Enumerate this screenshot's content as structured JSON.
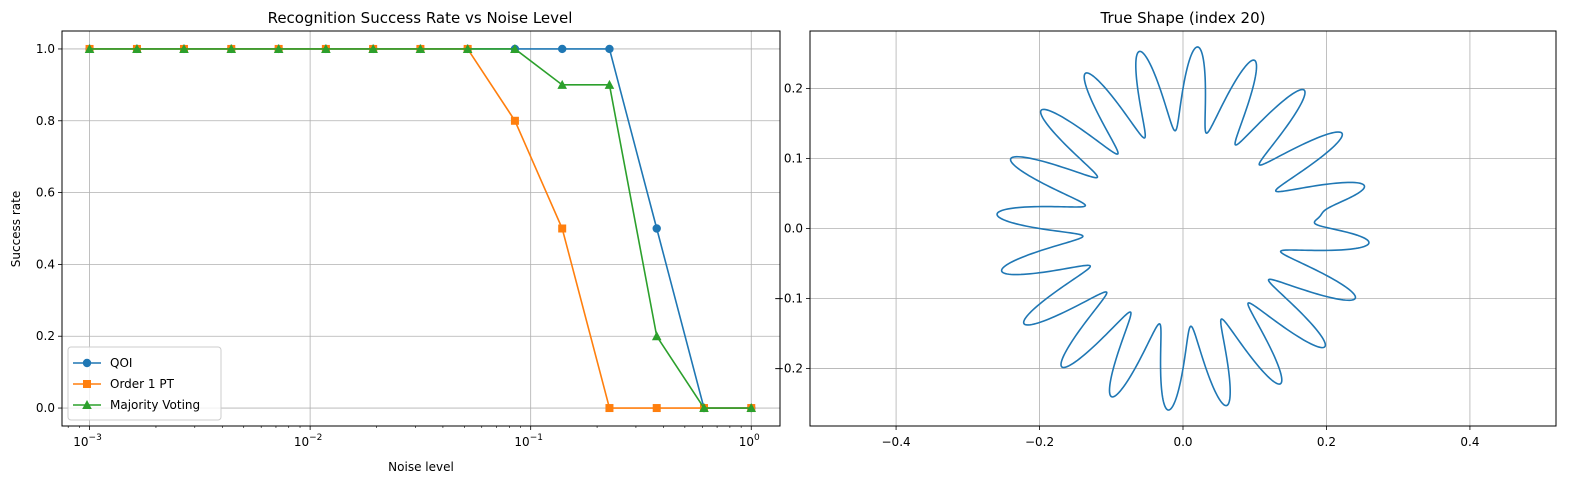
{
  "chart_data": [
    {
      "type": "line",
      "title": "Recognition Success Rate vs Noise Level",
      "xlabel": "Noise level",
      "ylabel": "Success rate",
      "xscale": "log",
      "xlim": [
        0.00075,
        1.35
      ],
      "ylim": [
        -0.05,
        1.05
      ],
      "x_ticks": [
        {
          "value": 0.001,
          "base": "10",
          "exp": "−3"
        },
        {
          "value": 0.01,
          "base": "10",
          "exp": "−2"
        },
        {
          "value": 0.1,
          "base": "10",
          "exp": "−1"
        },
        {
          "value": 1,
          "base": "10",
          "exp": "0"
        }
      ],
      "y_ticks": [
        "0.0",
        "0.2",
        "0.4",
        "0.6",
        "0.8",
        "1.0"
      ],
      "grid": true,
      "legend_position": "lower-left",
      "x": [
        0.001,
        0.00164,
        0.00268,
        0.00439,
        0.0072,
        0.01179,
        0.01931,
        0.03162,
        0.05179,
        0.08483,
        0.13895,
        0.22758,
        0.37276,
        0.61054,
        1.0
      ],
      "series": [
        {
          "name": "QOI",
          "color": "#1f77b4",
          "marker": "circle",
          "values": [
            1,
            1,
            1,
            1,
            1,
            1,
            1,
            1,
            1,
            1,
            1,
            1,
            0.5,
            0,
            0
          ]
        },
        {
          "name": "Order 1 PT",
          "color": "#ff7f0e",
          "marker": "square",
          "values": [
            1,
            1,
            1,
            1,
            1,
            1,
            1,
            1,
            1,
            0.8,
            0.5,
            0,
            0,
            0,
            0
          ]
        },
        {
          "name": "Majority Voting",
          "color": "#2ca02c",
          "marker": "triangle",
          "values": [
            1,
            1,
            1,
            1,
            1,
            1,
            1,
            1,
            1,
            1,
            0.9,
            0.9,
            0.2,
            0,
            0
          ]
        }
      ]
    },
    {
      "type": "line",
      "title": "True Shape (index 20)",
      "xlabel": "",
      "ylabel": "",
      "xlim": [
        -0.52,
        0.52
      ],
      "ylim": [
        -0.282,
        0.282
      ],
      "x_ticks": [
        "−0.4",
        "−0.2",
        "0.0",
        "0.2",
        "0.4"
      ],
      "y_ticks": [
        "−0.2",
        "−0.1",
        "0.0",
        "0.1",
        "0.2"
      ],
      "grid": true,
      "color": "#1f77b4",
      "shape": {
        "form": "closed polar curve",
        "petals": 20,
        "r_inner": 0.14,
        "r_outer": 0.26,
        "notch_angle_deg": 5,
        "notch_radius": 0.16
      }
    }
  ]
}
